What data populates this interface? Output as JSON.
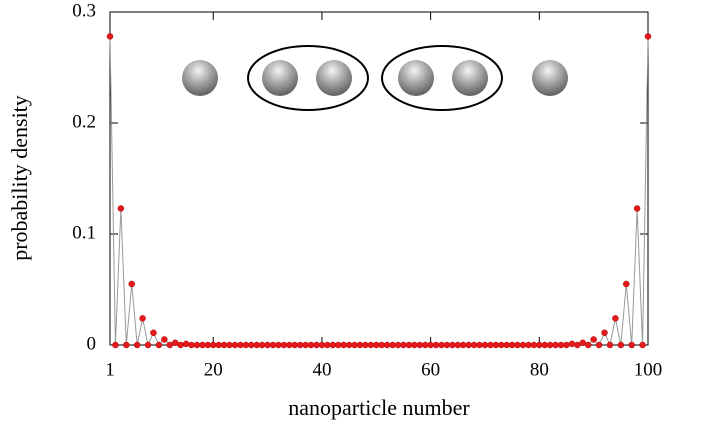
{
  "chart_data": {
    "type": "line",
    "x_label": "nanoparticle number",
    "y_label": "probability density",
    "x": [
      1,
      2,
      3,
      4,
      5,
      6,
      7,
      8,
      9,
      10,
      11,
      12,
      13,
      14,
      15,
      16,
      17,
      18,
      19,
      20,
      21,
      22,
      23,
      24,
      25,
      26,
      27,
      28,
      29,
      30,
      31,
      32,
      33,
      34,
      35,
      36,
      37,
      38,
      39,
      40,
      41,
      42,
      43,
      44,
      45,
      46,
      47,
      48,
      49,
      50,
      51,
      52,
      53,
      54,
      55,
      56,
      57,
      58,
      59,
      60,
      61,
      62,
      63,
      64,
      65,
      66,
      67,
      68,
      69,
      70,
      71,
      72,
      73,
      74,
      75,
      76,
      77,
      78,
      79,
      80,
      81,
      82,
      83,
      84,
      85,
      86,
      87,
      88,
      89,
      90,
      91,
      92,
      93,
      94,
      95,
      96,
      97,
      98,
      99,
      100
    ],
    "values": [
      0.278,
      0,
      0.123,
      0,
      0.055,
      0,
      0.024,
      0,
      0.011,
      0,
      0.005,
      0,
      0.002,
      0,
      0.001,
      0,
      0,
      0,
      0,
      0,
      0,
      0,
      0,
      0,
      0,
      0,
      0,
      0,
      0,
      0,
      0,
      0,
      0,
      0,
      0,
      0,
      0,
      0,
      0,
      0,
      0,
      0,
      0,
      0,
      0,
      0,
      0,
      0,
      0,
      0,
      0,
      0,
      0,
      0,
      0,
      0,
      0,
      0,
      0,
      0,
      0,
      0,
      0,
      0,
      0,
      0,
      0,
      0,
      0,
      0,
      0,
      0,
      0,
      0,
      0,
      0,
      0,
      0,
      0,
      0,
      0,
      0,
      0,
      0,
      0,
      0.001,
      0,
      0.002,
      0,
      0.005,
      0,
      0.011,
      0,
      0.024,
      0,
      0.055,
      0,
      0.123,
      0,
      0.278
    ],
    "color": "#999999",
    "marker_color": "#e41a1c",
    "xlim": [
      1,
      100
    ],
    "xticks": [
      1,
      20,
      40,
      60,
      80,
      100
    ],
    "ylim": [
      0,
      0.3
    ],
    "yticks": [
      0,
      0.1,
      0.2,
      0.3
    ]
  }
}
